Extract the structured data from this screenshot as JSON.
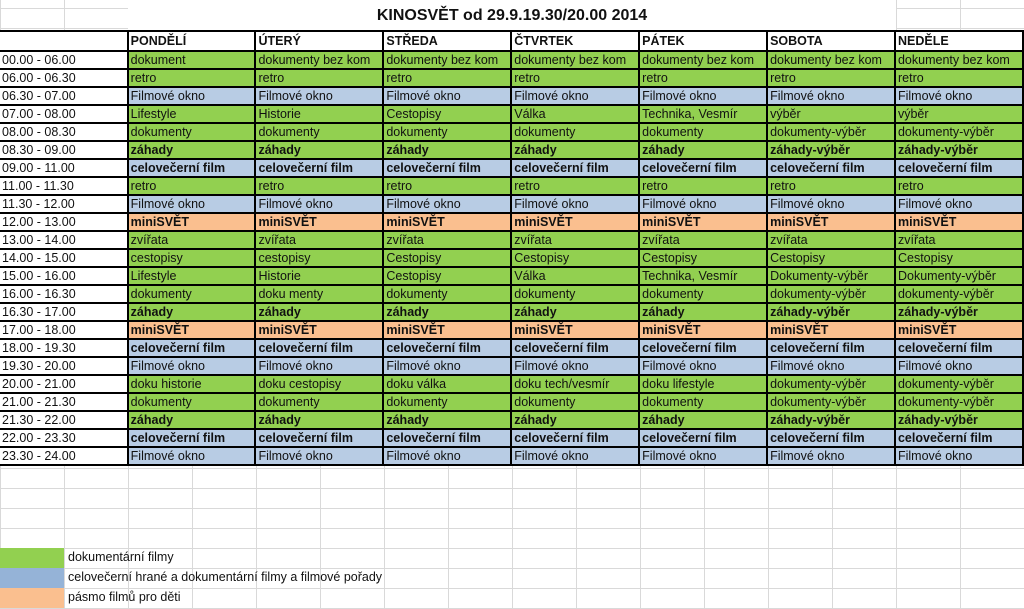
{
  "title": "KINOSVĚT od 29.9.19.30/20.00 2014",
  "colors": {
    "g": "#92d050",
    "b": "#b8cce4",
    "o": "#fabf8f",
    "legend_b": "#95b3d7"
  },
  "days": [
    "PONDĚLÍ",
    "ÚTERÝ",
    "STŘEDA",
    "ČTVRTEK",
    "PÁTEK",
    "SOBOTA",
    "NEDĚLE"
  ],
  "rows": [
    {
      "time": "00.00 - 06.00",
      "cat": "g",
      "bold": false,
      "cells": [
        "dokument",
        "dokumenty bez kom",
        "dokumenty bez kom",
        "dokumenty bez kom",
        "dokumenty bez kom",
        "dokumenty bez kom",
        "dokumenty bez kom"
      ]
    },
    {
      "time": "06.00 - 06.30",
      "cat": "g",
      "bold": false,
      "cells": [
        "retro",
        "retro",
        "retro",
        "retro",
        "retro",
        "retro",
        "retro"
      ]
    },
    {
      "time": "06.30 - 07.00",
      "cat": "b",
      "bold": false,
      "cells": [
        "Filmové okno",
        "Filmové okno",
        "Filmové okno",
        "Filmové okno",
        "Filmové okno",
        "Filmové okno",
        "Filmové okno"
      ]
    },
    {
      "time": "07.00 - 08.00",
      "cat": "g",
      "bold": false,
      "cells": [
        "Lifestyle",
        "Historie",
        "Cestopisy",
        "Válka",
        "Technika, Vesmír",
        "výběr",
        "výběr"
      ]
    },
    {
      "time": "08.00 - 08.30",
      "cat": "g",
      "bold": false,
      "cells": [
        "dokumenty",
        "dokumenty",
        "dokumenty",
        "dokumenty",
        "dokumenty",
        "dokumenty-výběr",
        "dokumenty-výběr"
      ]
    },
    {
      "time": "08.30 - 09.00",
      "cat": "g",
      "bold": true,
      "cells": [
        "záhady",
        "záhady",
        "záhady",
        "záhady",
        "záhady",
        "záhady-výběr",
        "záhady-výběr"
      ]
    },
    {
      "time": "09.00 - 11.00",
      "cat": "b",
      "bold": true,
      "cells": [
        "celovečerní film",
        "celovečerní film",
        "celovečerní film",
        "celovečerní film",
        "celovečerní film",
        "celovečerní film",
        "celovečerní film"
      ]
    },
    {
      "time": "11.00 - 11.30",
      "cat": "g",
      "bold": false,
      "cells": [
        "retro",
        "retro",
        "retro",
        "retro",
        "retro",
        "retro",
        "retro"
      ]
    },
    {
      "time": "11.30 - 12.00",
      "cat": "b",
      "bold": false,
      "cells": [
        "Filmové okno",
        "Filmové okno",
        "Filmové okno",
        "Filmové okno",
        "Filmové okno",
        "Filmové okno",
        "Filmové okno"
      ]
    },
    {
      "time": "12.00 - 13.00",
      "cat": "o",
      "bold": true,
      "cells": [
        "miniSVĚT",
        "miniSVĚT",
        "miniSVĚT",
        "miniSVĚT",
        "miniSVĚT",
        "miniSVĚT",
        "miniSVĚT"
      ]
    },
    {
      "time": "13.00 - 14.00",
      "cat": "g",
      "bold": false,
      "cells": [
        "zvířata",
        "zvířata",
        "zvířata",
        "zvířata",
        "zvířata",
        "zvířata",
        "zvířata"
      ]
    },
    {
      "time": "14.00 - 15.00",
      "cat": "g",
      "bold": false,
      "cells": [
        "cestopisy",
        "cestopisy",
        "Cestopisy",
        "Cestopisy",
        "Cestopisy",
        "Cestopisy",
        "Cestopisy"
      ]
    },
    {
      "time": "15.00 - 16.00",
      "cat": "g",
      "bold": false,
      "cells": [
        "Lifestyle",
        "Historie",
        "Cestopisy",
        "Válka",
        "Technika, Vesmír",
        "Dokumenty-výběr",
        "Dokumenty-výběr"
      ]
    },
    {
      "time": "16.00 - 16.30",
      "cat": "g",
      "bold": false,
      "cells": [
        "dokumenty",
        "doku menty",
        "dokumenty",
        "dokumenty",
        "dokumenty",
        "dokumenty-výběr",
        "dokumenty-výběr"
      ]
    },
    {
      "time": "16.30 - 17.00",
      "cat": "g",
      "bold": true,
      "cells": [
        "záhady",
        "záhady",
        "záhady",
        "záhady",
        "záhady",
        "záhady-výběr",
        "záhady-výběr"
      ]
    },
    {
      "time": "17.00 - 18.00",
      "cat": "o",
      "bold": true,
      "cells": [
        "miniSVĚT",
        "miniSVĚT",
        "miniSVĚT",
        "miniSVĚT",
        "miniSVĚT",
        "miniSVĚT",
        "miniSVĚT"
      ]
    },
    {
      "time": "18.00 - 19.30",
      "cat": "b",
      "bold": true,
      "cells": [
        "celovečerní film",
        "celovečerní film",
        "celovečerní film",
        "celovečerní film",
        "celovečerní film",
        "celovečerní film",
        "celovečerní film"
      ]
    },
    {
      "time": "19.30 - 20.00",
      "cat": "b",
      "bold": false,
      "cells": [
        "Filmové okno",
        "Filmové okno",
        "Filmové okno",
        "Filmové okno",
        "Filmové okno",
        "Filmové okno",
        "Filmové okno"
      ]
    },
    {
      "time": "20.00 - 21.00",
      "cat": "g",
      "bold": false,
      "cells": [
        "doku historie",
        "doku cestopisy",
        "doku válka",
        "doku tech/vesmír",
        "doku lifestyle",
        "dokumenty-výběr",
        "dokumenty-výběr"
      ]
    },
    {
      "time": "21.00 - 21.30",
      "cat": "g",
      "bold": false,
      "cells": [
        "dokumenty",
        "dokumenty",
        "dokumenty",
        "dokumenty",
        "dokumenty",
        "dokumenty-výběr",
        "dokumenty-výběr"
      ]
    },
    {
      "time": "21.30 - 22.00",
      "cat": "g",
      "bold": true,
      "cells": [
        "záhady",
        "záhady",
        "záhady",
        "záhady",
        "záhady",
        "záhady-výběr",
        "záhady-výběr"
      ]
    },
    {
      "time": "22.00 - 23.30",
      "cat": "b",
      "bold": true,
      "cells": [
        "celovečerní film",
        "celovečerní film",
        "celovečerní film",
        "celovečerní film",
        "celovečerní film",
        "celovečerní film",
        "celovečerní film"
      ]
    },
    {
      "time": "23.30 - 24.00",
      "cat": "b",
      "bold": false,
      "cells": [
        "Filmové okno",
        "Filmové okno",
        "Filmové okno",
        "Filmové okno",
        "Filmové okno",
        "Filmové okno",
        "Filmové okno"
      ]
    }
  ],
  "legend": [
    {
      "color": "#92d050",
      "label": "dokumentární filmy"
    },
    {
      "color": "#95b3d7",
      "label": "celovečerní hrané a dokumentární filmy a filmové pořady"
    },
    {
      "color": "#fabf8f",
      "label": "pásmo filmů pro děti"
    }
  ]
}
